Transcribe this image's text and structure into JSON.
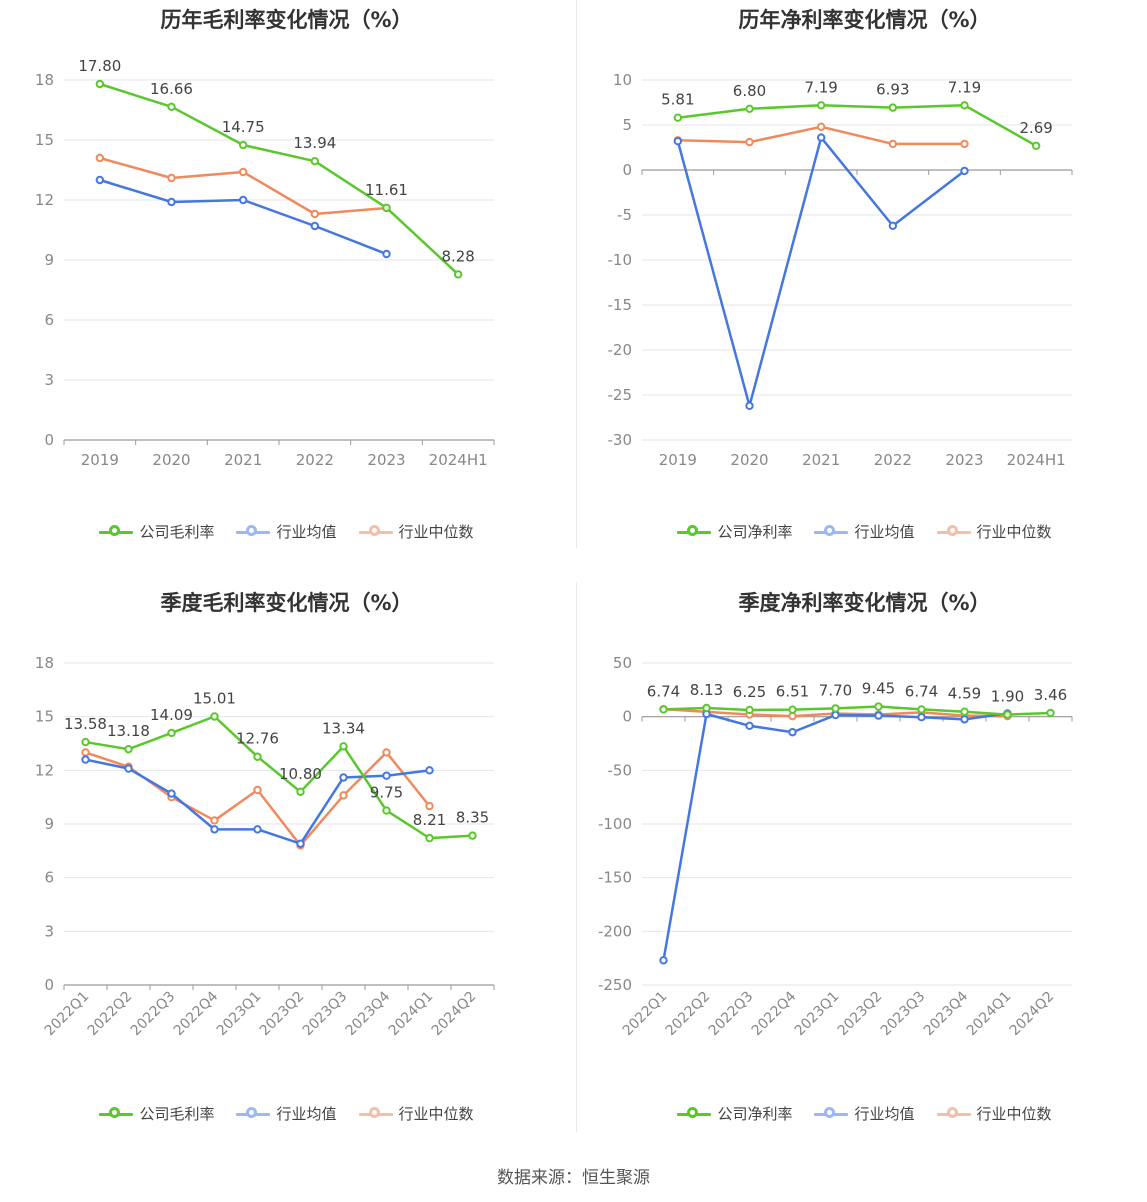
{
  "source": "数据来源：恒生聚源",
  "colors": {
    "company": "#5ac82c",
    "avg": "#4477e0",
    "median": "#f08a5d",
    "grid": "#e6e6ee",
    "axis": "#9a9a9a"
  },
  "charts": [
    {
      "title": "历年毛利率变化情况（%）",
      "legend": [
        "公司毛利率",
        "行业均值",
        "行业中位数"
      ],
      "chart_data": {
        "type": "line",
        "categories": [
          "2019",
          "2020",
          "2021",
          "2022",
          "2023",
          "2024H1"
        ],
        "ylim": [
          0,
          18
        ],
        "yticks": [
          0,
          3,
          6,
          9,
          12,
          15,
          18
        ],
        "rotate_labels": false,
        "series": [
          {
            "name": "公司毛利率",
            "values": [
              17.8,
              16.66,
              14.75,
              13.94,
              11.61,
              8.28
            ],
            "labels": [
              "17.80",
              "16.66",
              "14.75",
              "13.94",
              "11.61",
              "8.28"
            ]
          },
          {
            "name": "行业均值",
            "values": [
              13.0,
              11.9,
              12.0,
              10.7,
              9.3,
              null
            ]
          },
          {
            "name": "行业中位数",
            "values": [
              14.1,
              13.1,
              13.4,
              11.3,
              11.6,
              null
            ]
          }
        ]
      }
    },
    {
      "title": "历年净利率变化情况（%）",
      "legend": [
        "公司净利率",
        "行业均值",
        "行业中位数"
      ],
      "chart_data": {
        "type": "line",
        "categories": [
          "2019",
          "2020",
          "2021",
          "2022",
          "2023",
          "2024H1"
        ],
        "ylim": [
          -30,
          10
        ],
        "yticks": [
          -30,
          -25,
          -20,
          -15,
          -10,
          -5,
          0,
          5,
          10
        ],
        "rotate_labels": false,
        "series": [
          {
            "name": "公司净利率",
            "values": [
              5.81,
              6.8,
              7.19,
              6.93,
              7.19,
              2.69
            ],
            "labels": [
              "5.81",
              "6.80",
              "7.19",
              "6.93",
              "7.19",
              "2.69"
            ]
          },
          {
            "name": "行业均值",
            "values": [
              3.2,
              -26.2,
              3.6,
              -6.2,
              -0.1,
              null
            ]
          },
          {
            "name": "行业中位数",
            "values": [
              3.3,
              3.1,
              4.8,
              2.9,
              2.9,
              null
            ]
          }
        ]
      }
    },
    {
      "title": "季度毛利率变化情况（%）",
      "legend": [
        "公司毛利率",
        "行业均值",
        "行业中位数"
      ],
      "chart_data": {
        "type": "line",
        "categories": [
          "2022Q1",
          "2022Q2",
          "2022Q3",
          "2022Q4",
          "2023Q1",
          "2023Q2",
          "2023Q3",
          "2023Q4",
          "2024Q1",
          "2024Q2"
        ],
        "ylim": [
          0,
          18
        ],
        "yticks": [
          0,
          3,
          6,
          9,
          12,
          15,
          18
        ],
        "rotate_labels": true,
        "series": [
          {
            "name": "公司毛利率",
            "values": [
              13.58,
              13.18,
              14.09,
              15.01,
              12.76,
              10.8,
              13.34,
              9.75,
              8.21,
              8.35
            ],
            "labels": [
              "13.58",
              "13.18",
              "14.09",
              "15.01",
              "12.76",
              "10.80",
              "13.34",
              "9.75",
              "8.21",
              "8.35"
            ]
          },
          {
            "name": "行业均值",
            "values": [
              12.6,
              12.1,
              10.7,
              8.7,
              8.7,
              7.9,
              11.6,
              11.7,
              12.0,
              null
            ]
          },
          {
            "name": "行业中位数",
            "values": [
              13.0,
              12.2,
              10.5,
              9.2,
              10.9,
              7.8,
              10.6,
              13.0,
              10.0,
              null
            ]
          }
        ]
      }
    },
    {
      "title": "季度净利率变化情况（%）",
      "legend": [
        "公司净利率",
        "行业均值",
        "行业中位数"
      ],
      "chart_data": {
        "type": "line",
        "categories": [
          "2022Q1",
          "2022Q2",
          "2022Q3",
          "2022Q4",
          "2023Q1",
          "2023Q2",
          "2023Q3",
          "2023Q4",
          "2024Q1",
          "2024Q2"
        ],
        "ylim": [
          -250,
          50
        ],
        "yticks": [
          -250,
          -200,
          -150,
          -100,
          -50,
          0,
          50
        ],
        "rotate_labels": true,
        "series": [
          {
            "name": "公司净利率",
            "values": [
              6.74,
              8.13,
              6.25,
              6.51,
              7.7,
              9.45,
              6.74,
              4.59,
              1.9,
              3.46
            ],
            "labels": [
              "6.74",
              "8.13",
              "6.25",
              "6.51",
              "7.70",
              "9.45",
              "6.74",
              "4.59",
              "1.90",
              "3.46"
            ]
          },
          {
            "name": "行业均值",
            "values": [
              -227,
              2.5,
              -8.5,
              -14.5,
              1.5,
              1.0,
              -0.5,
              -2.5,
              3.0,
              null
            ]
          },
          {
            "name": "行业中位数",
            "values": [
              7.0,
              4.5,
              2.0,
              0.5,
              3.0,
              2.0,
              4.0,
              1.0,
              0.5,
              null
            ]
          }
        ]
      }
    }
  ]
}
